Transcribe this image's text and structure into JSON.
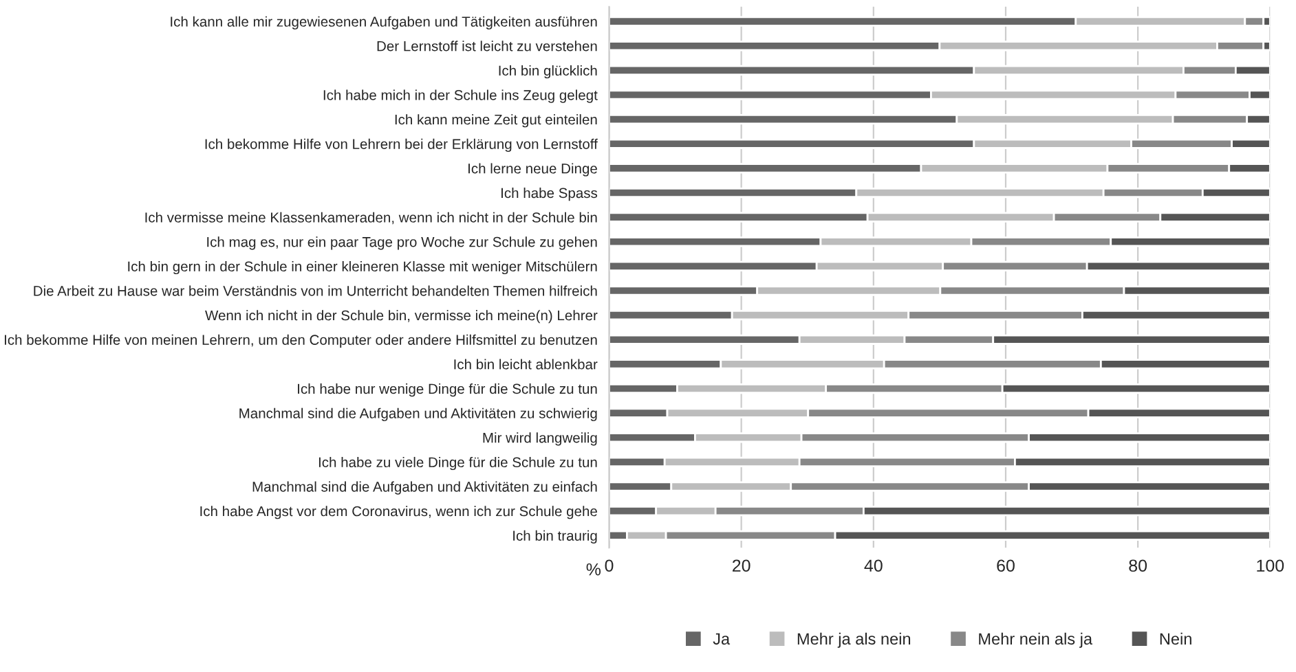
{
  "chart_data": {
    "type": "bar",
    "orientation": "horizontal",
    "stacked": true,
    "xlabel": "%",
    "categories": [
      "Ich kann alle mir zugewiesenen Aufgaben und Tätigkeiten ausführen",
      "Der Lernstoff ist leicht zu verstehen",
      "Ich bin glücklich",
      "Ich habe mich in der Schule ins Zeug gelegt",
      "Ich kann meine Zeit gut einteilen",
      "Ich bekomme Hilfe von Lehrern bei der Erklärung von Lernstoff",
      "Ich lerne neue Dinge",
      "Ich habe Spass",
      "Ich vermisse meine Klassenkameraden, wenn ich nicht in der Schule bin",
      "Ich mag es, nur ein paar Tage pro Woche zur Schule zu gehen",
      "Ich bin gern in der Schule in einer kleineren Klasse mit weniger Mitschülern",
      "Die Arbeit zu Hause war beim Verständnis von im Unterricht behandelten Themen hilfreich",
      "Wenn ich nicht in der Schule bin, vermisse ich meine(n) Lehrer",
      "Ich bekomme Hilfe von meinen Lehrern, um den Computer oder andere Hilfsmittel zu benutzen",
      "Ich bin leicht ablenkbar",
      "Ich habe nur wenige Dinge für die Schule zu tun",
      "Manchmal sind die Aufgaben und Aktivitäten zu schwierig",
      "Mir wird langweilig",
      "Ich habe zu viele Dinge für die Schule zu tun",
      "Manchmal sind die Aufgaben und Aktivitäten zu einfach",
      "Ich habe Angst vor dem Coronavirus, wenn ich zur Schule gehe",
      "Ich bin traurig"
    ],
    "series": [
      {
        "name": "Ja",
        "color": "#666666",
        "values": [
          70.6,
          50,
          55.2,
          48.7,
          52.6,
          55.2,
          47.2,
          37.4,
          39.1,
          32,
          31.4,
          22.4,
          18.6,
          28.8,
          16.9,
          10.3,
          8.8,
          13,
          8.4,
          9.4,
          7.1,
          2.7
        ]
      },
      {
        "name": "Mehr ja als nein",
        "color": "#bcbcbc",
        "values": [
          25.6,
          42,
          31.7,
          37,
          32.7,
          23.8,
          28.2,
          37.4,
          28.2,
          22.8,
          19.1,
          27.7,
          26.7,
          15.9,
          24.7,
          22.5,
          21.3,
          16.1,
          20.4,
          18.1,
          9,
          5.9
        ]
      },
      {
        "name": "Mehr nein als ja",
        "color": "#888888",
        "values": [
          2.8,
          7,
          7.9,
          11.2,
          11.2,
          15.2,
          18.4,
          15,
          16.1,
          21.1,
          21.8,
          27.8,
          26.3,
          13.4,
          32.8,
          26.7,
          42.4,
          34.4,
          32.6,
          36,
          22.4,
          25.6
        ]
      },
      {
        "name": "Nein",
        "color": "#555555",
        "values": [
          1,
          1,
          5.2,
          3.1,
          3.5,
          5.8,
          6.2,
          10.2,
          16.6,
          24.1,
          27.7,
          22.1,
          28.4,
          41.9,
          25.6,
          40.5,
          27.5,
          36.5,
          38.6,
          36.5,
          61.5,
          65.8
        ]
      }
    ],
    "xlim": [
      0,
      100
    ],
    "xticks": [
      0,
      20,
      40,
      60,
      80,
      100
    ],
    "grid": "x",
    "legend": "bottom"
  }
}
